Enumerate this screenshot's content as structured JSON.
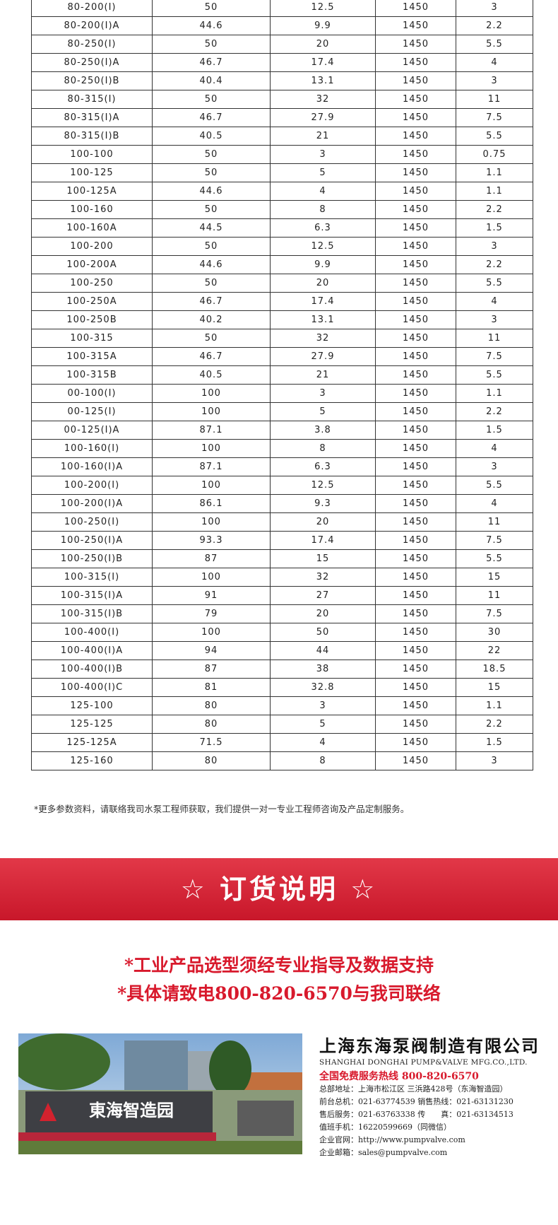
{
  "table": {
    "rows": [
      [
        "80-200(I)",
        "50",
        "12.5",
        "1450",
        "3"
      ],
      [
        "80-200(I)A",
        "44.6",
        "9.9",
        "1450",
        "2.2"
      ],
      [
        "80-250(I)",
        "50",
        "20",
        "1450",
        "5.5"
      ],
      [
        "80-250(I)A",
        "46.7",
        "17.4",
        "1450",
        "4"
      ],
      [
        "80-250(I)B",
        "40.4",
        "13.1",
        "1450",
        "3"
      ],
      [
        "80-315(I)",
        "50",
        "32",
        "1450",
        "11"
      ],
      [
        "80-315(I)A",
        "46.7",
        "27.9",
        "1450",
        "7.5"
      ],
      [
        "80-315(I)B",
        "40.5",
        "21",
        "1450",
        "5.5"
      ],
      [
        "100-100",
        "50",
        "3",
        "1450",
        "0.75"
      ],
      [
        "100-125",
        "50",
        "5",
        "1450",
        "1.1"
      ],
      [
        "100-125A",
        "44.6",
        "4",
        "1450",
        "1.1"
      ],
      [
        "100-160",
        "50",
        "8",
        "1450",
        "2.2"
      ],
      [
        "100-160A",
        "44.5",
        "6.3",
        "1450",
        "1.5"
      ],
      [
        "100-200",
        "50",
        "12.5",
        "1450",
        "3"
      ],
      [
        "100-200A",
        "44.6",
        "9.9",
        "1450",
        "2.2"
      ],
      [
        "100-250",
        "50",
        "20",
        "1450",
        "5.5"
      ],
      [
        "100-250A",
        "46.7",
        "17.4",
        "1450",
        "4"
      ],
      [
        "100-250B",
        "40.2",
        "13.1",
        "1450",
        "3"
      ],
      [
        "100-315",
        "50",
        "32",
        "1450",
        "11"
      ],
      [
        "100-315A",
        "46.7",
        "27.9",
        "1450",
        "7.5"
      ],
      [
        "100-315B",
        "40.5",
        "21",
        "1450",
        "5.5"
      ],
      [
        "00-100(I)",
        "100",
        "3",
        "1450",
        "1.1"
      ],
      [
        "00-125(I)",
        "100",
        "5",
        "1450",
        "2.2"
      ],
      [
        "00-125(I)A",
        "87.1",
        "3.8",
        "1450",
        "1.5"
      ],
      [
        "100-160(I)",
        "100",
        "8",
        "1450",
        "4"
      ],
      [
        "100-160(I)A",
        "87.1",
        "6.3",
        "1450",
        "3"
      ],
      [
        "100-200(I)",
        "100",
        "12.5",
        "1450",
        "5.5"
      ],
      [
        "100-200(I)A",
        "86.1",
        "9.3",
        "1450",
        "4"
      ],
      [
        "100-250(I)",
        "100",
        "20",
        "1450",
        "11"
      ],
      [
        "100-250(I)A",
        "93.3",
        "17.4",
        "1450",
        "7.5"
      ],
      [
        "100-250(I)B",
        "87",
        "15",
        "1450",
        "5.5"
      ],
      [
        "100-315(I)",
        "100",
        "32",
        "1450",
        "15"
      ],
      [
        "100-315(I)A",
        "91",
        "27",
        "1450",
        "11"
      ],
      [
        "100-315(I)B",
        "79",
        "20",
        "1450",
        "7.5"
      ],
      [
        "100-400(I)",
        "100",
        "50",
        "1450",
        "30"
      ],
      [
        "100-400(I)A",
        "94",
        "44",
        "1450",
        "22"
      ],
      [
        "100-400(I)B",
        "87",
        "38",
        "1450",
        "18.5"
      ],
      [
        "100-400(I)C",
        "81",
        "32.8",
        "1450",
        "15"
      ],
      [
        "125-100",
        "80",
        "3",
        "1450",
        "1.1"
      ],
      [
        "125-125",
        "80",
        "5",
        "1450",
        "2.2"
      ],
      [
        "125-125A",
        "71.5",
        "4",
        "1450",
        "1.5"
      ],
      [
        "125-160",
        "80",
        "8",
        "1450",
        "3"
      ]
    ]
  },
  "note": "*更多参数资料，请联络我司水泵工程师获取，我们提供一对一专业工程师咨询及产品定制服务。",
  "banner": {
    "title": "☆ 订货说明 ☆"
  },
  "order_lines": [
    "*工业产品选型须经专业指导及数据支持",
    "*具体请致电800-820-6570与我司联络"
  ],
  "photo": {
    "sign": "東海智造园"
  },
  "company": {
    "name": "上海东海泵阀制造有限公司",
    "name_en": "SHANGHAI DONGHAI PUMP&VALVE MFG.CO.,LTD.",
    "hotline": "全国免费服务热线  800-820-6570",
    "lines": [
      "总部地址：上海市松江区 三浜路428号（东海智造园）",
      "前台总机：021-63774539  销售热线：021-63131230",
      "售后服务：021-63763338  传　　真：021-63134513",
      "值班手机：16220599669（同微信）",
      "企业官网：http://www.pumpvalve.com",
      "企业邮箱：sales@pumpvalve.com"
    ]
  }
}
